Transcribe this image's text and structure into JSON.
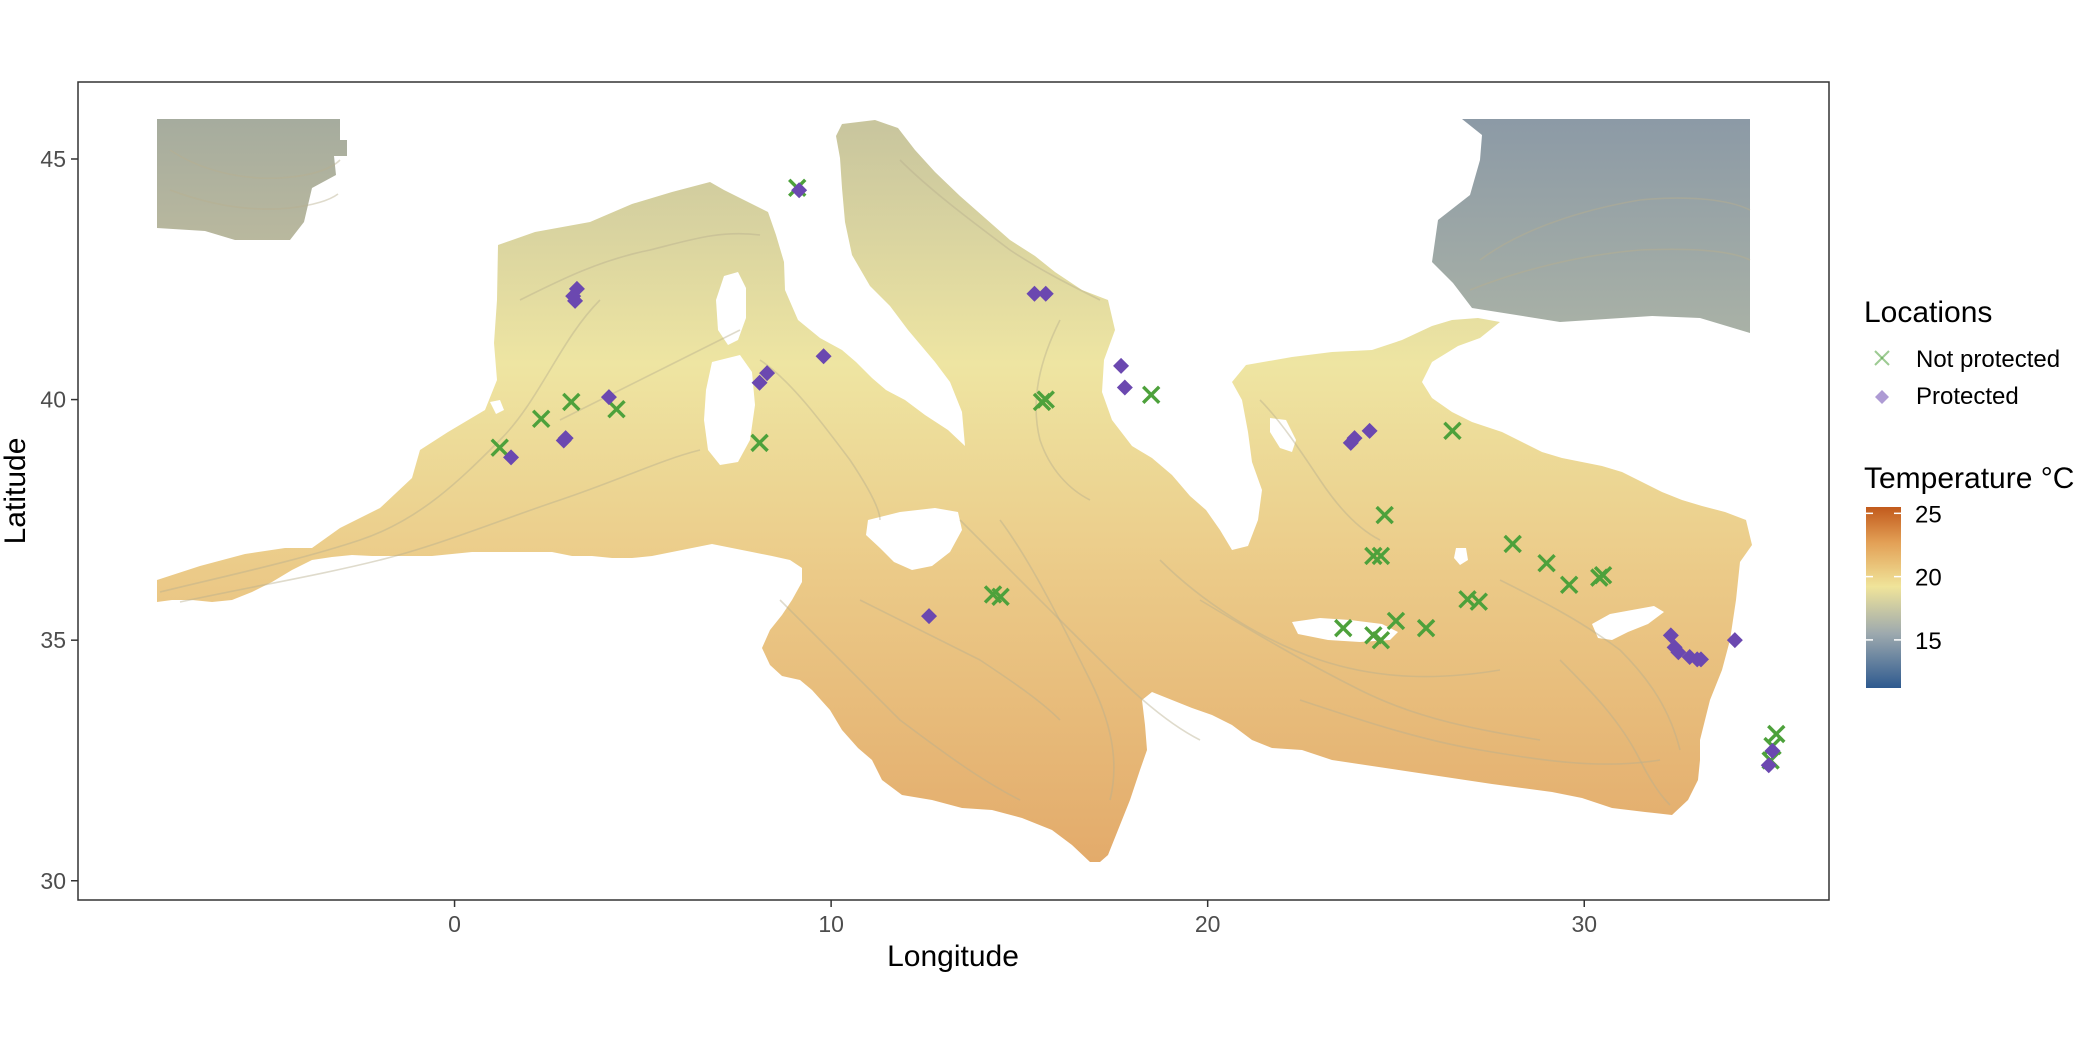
{
  "chart_data": {
    "type": "map",
    "xlabel": "Longitude",
    "ylabel": "Latitude",
    "xlim": [
      -10,
      36.5
    ],
    "ylim": [
      29.6,
      46.6
    ],
    "x_ticks": [
      0,
      10,
      20,
      30
    ],
    "y_ticks": [
      30,
      35,
      40,
      45
    ],
    "grid": false,
    "colorbar": {
      "title": "Temperature °C",
      "ticks": [
        15,
        20,
        25
      ],
      "range": [
        11.2,
        25.5
      ],
      "colors": [
        "#2e5a8f",
        "#9da9ae",
        "#f0e49a",
        "#e3a157",
        "#c25a1c"
      ]
    },
    "legend": {
      "title": "Locations",
      "placement": "right",
      "entries": [
        {
          "label": "Not protected",
          "marker": "x",
          "color": "#4da13b"
        },
        {
          "label": "Protected",
          "marker": "diamond",
          "color": "#6b48b0"
        }
      ]
    },
    "series": [
      {
        "name": "Not protected",
        "marker": "x",
        "color": "#4da13b",
        "points": [
          [
            9.1,
            44.4
          ],
          [
            2.3,
            39.6
          ],
          [
            3.1,
            39.95
          ],
          [
            4.3,
            39.8
          ],
          [
            1.2,
            39.0
          ],
          [
            8.1,
            39.1
          ],
          [
            15.7,
            40.0
          ],
          [
            15.6,
            39.95
          ],
          [
            18.5,
            40.1
          ],
          [
            14.3,
            35.95
          ],
          [
            14.5,
            35.9
          ],
          [
            26.5,
            39.35
          ],
          [
            24.7,
            37.6
          ],
          [
            24.6,
            36.75
          ],
          [
            24.4,
            36.75
          ],
          [
            28.1,
            37.0
          ],
          [
            29.0,
            36.6
          ],
          [
            29.6,
            36.15
          ],
          [
            30.4,
            36.3
          ],
          [
            30.5,
            36.35
          ],
          [
            26.9,
            35.85
          ],
          [
            27.2,
            35.8
          ],
          [
            23.6,
            35.25
          ],
          [
            24.4,
            35.1
          ],
          [
            24.6,
            35.0
          ],
          [
            25.0,
            35.4
          ],
          [
            25.8,
            35.25
          ],
          [
            35.1,
            33.05
          ],
          [
            35.0,
            32.8
          ],
          [
            34.95,
            32.5
          ]
        ]
      },
      {
        "name": "Protected",
        "marker": "diamond",
        "color": "#6b48b0",
        "points": [
          [
            9.15,
            44.35
          ],
          [
            3.25,
            42.3
          ],
          [
            3.15,
            42.15
          ],
          [
            3.2,
            42.05
          ],
          [
            4.1,
            40.05
          ],
          [
            2.95,
            39.2
          ],
          [
            2.9,
            39.15
          ],
          [
            1.5,
            38.8
          ],
          [
            8.3,
            40.55
          ],
          [
            8.1,
            40.35
          ],
          [
            9.8,
            40.9
          ],
          [
            15.4,
            42.2
          ],
          [
            15.7,
            42.2
          ],
          [
            17.7,
            40.7
          ],
          [
            17.8,
            40.25
          ],
          [
            12.6,
            35.5
          ],
          [
            23.8,
            39.1
          ],
          [
            23.9,
            39.2
          ],
          [
            24.3,
            39.35
          ],
          [
            32.3,
            35.1
          ],
          [
            32.4,
            34.85
          ],
          [
            32.5,
            34.75
          ],
          [
            32.8,
            34.65
          ],
          [
            33.0,
            34.6
          ],
          [
            33.1,
            34.6
          ],
          [
            34.0,
            35.0
          ],
          [
            35.0,
            32.7
          ],
          [
            34.9,
            32.4
          ]
        ]
      }
    ]
  }
}
